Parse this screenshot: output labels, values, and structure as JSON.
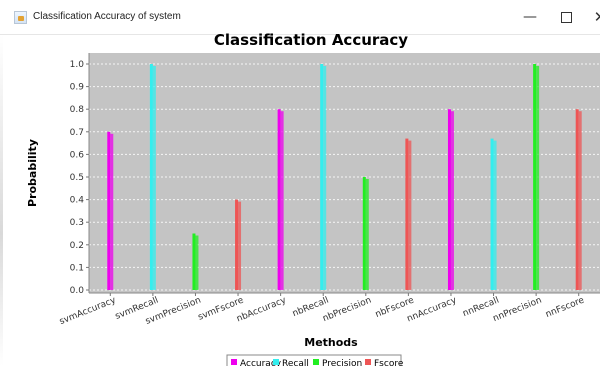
{
  "window": {
    "title": "Classification Accuracy of system",
    "minimize_glyph": "—",
    "close_glyph": "✕"
  },
  "chart_data": {
    "type": "bar",
    "title": "Classification Accuracy",
    "xlabel": "Methods",
    "ylabel": "Probability",
    "ylim": [
      0,
      1.0
    ],
    "yticks": [
      "0.0",
      "0.1",
      "0.2",
      "0.3",
      "0.4",
      "0.5",
      "0.6",
      "0.7",
      "0.8",
      "0.9",
      "1.0"
    ],
    "grid": true,
    "legend_position": "bottom",
    "categories": [
      "svmAccuracy",
      "svmRecall",
      "svmPrecision",
      "svmFscore",
      "nbAccuracy",
      "nbRecall",
      "nbPrecision",
      "nbFscore",
      "nnAccuracy",
      "nnRecall",
      "nnPrecision",
      "nnFscore"
    ],
    "series": [
      {
        "name": "Accuracy",
        "color": "#ee00ee",
        "values": [
          0.7,
          null,
          null,
          null,
          0.8,
          null,
          null,
          null,
          0.8,
          null,
          null,
          null
        ]
      },
      {
        "name": "Recall",
        "color": "#33eeee",
        "values": [
          null,
          1.0,
          null,
          null,
          null,
          1.0,
          null,
          null,
          null,
          0.67,
          null,
          null
        ]
      },
      {
        "name": "Precision",
        "color": "#22ee22",
        "values": [
          null,
          null,
          0.25,
          null,
          null,
          null,
          0.5,
          null,
          null,
          null,
          1.0,
          null
        ]
      },
      {
        "name": "Fscore",
        "color": "#ee5555",
        "values": [
          null,
          null,
          null,
          0.4,
          null,
          null,
          null,
          0.67,
          null,
          null,
          null,
          0.8
        ]
      }
    ]
  }
}
